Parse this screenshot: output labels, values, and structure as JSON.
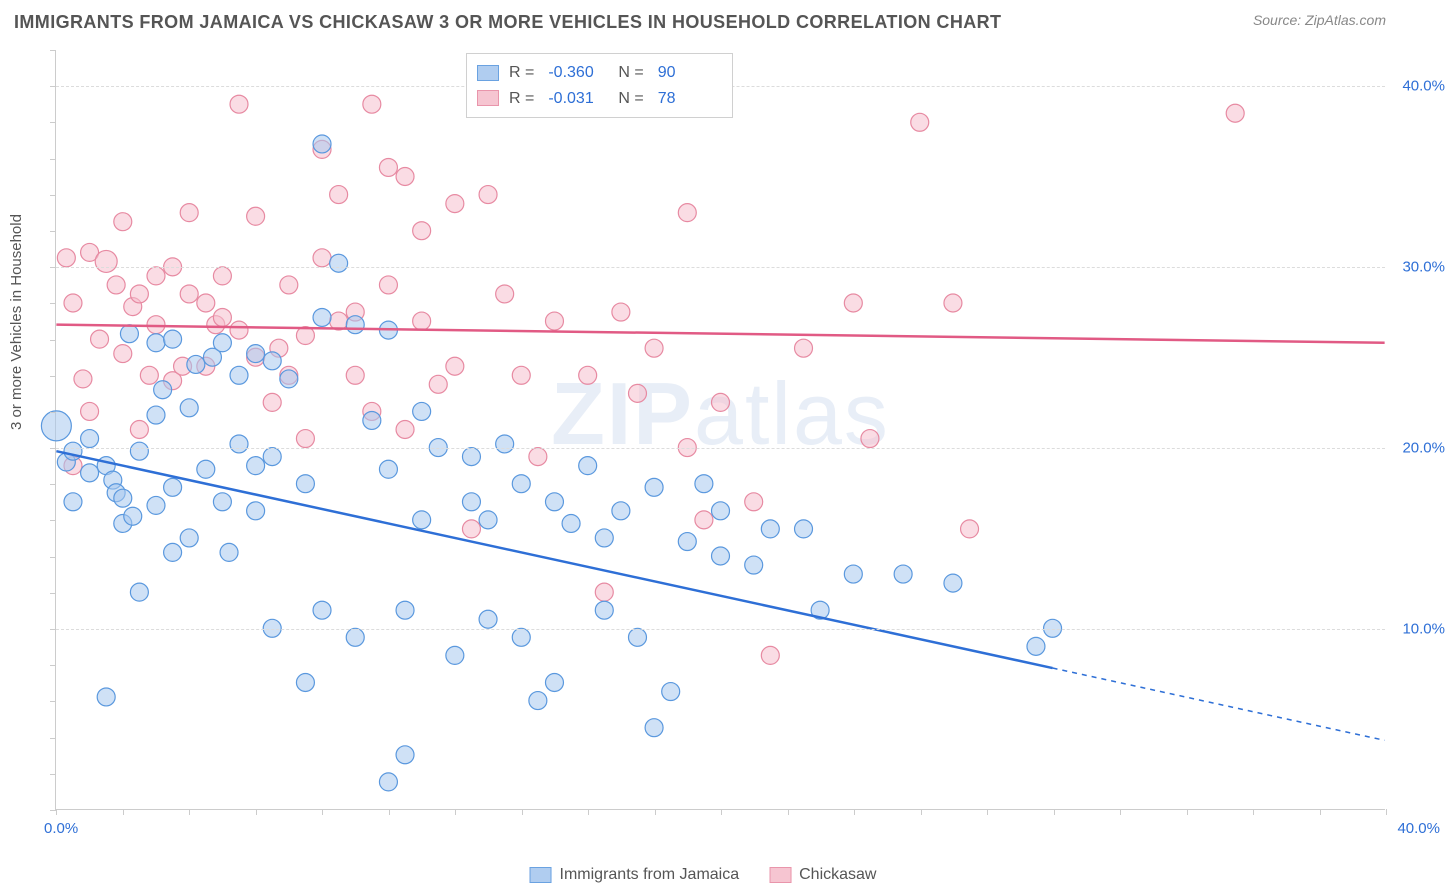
{
  "title": "IMMIGRANTS FROM JAMAICA VS CHICKASAW 3 OR MORE VEHICLES IN HOUSEHOLD CORRELATION CHART",
  "source": "Source: ZipAtlas.com",
  "ylabel": "3 or more Vehicles in Household",
  "watermark_bold": "ZIP",
  "watermark_rest": "atlas",
  "chart": {
    "type": "scatter",
    "background_color": "#ffffff",
    "grid_color": "#dcdcdc",
    "border_color": "#cccccc",
    "xlim": [
      0,
      40
    ],
    "ylim": [
      0,
      42
    ],
    "x_tick_values": [
      0,
      2,
      4,
      6,
      8,
      10,
      12,
      14,
      16,
      18,
      20,
      22,
      24,
      26,
      28,
      30,
      32,
      34,
      36,
      38,
      40
    ],
    "y_tick_values": [
      0,
      2,
      4,
      6,
      8,
      10,
      12,
      14,
      16,
      18,
      20,
      22,
      24,
      26,
      28,
      30,
      32,
      34,
      36,
      38,
      40,
      42
    ],
    "y_gridlines": [
      10,
      20,
      30,
      40
    ],
    "x_labels": {
      "min": "0.0%",
      "max": "40.0%"
    },
    "y_labels": [
      {
        "v": 10,
        "t": "10.0%"
      },
      {
        "v": 20,
        "t": "20.0%"
      },
      {
        "v": 30,
        "t": "30.0%"
      },
      {
        "v": 40,
        "t": "40.0%"
      }
    ],
    "tick_label_color": "#2e6fd6",
    "axis_label_color": "#555555",
    "axis_label_fontsize": 15
  },
  "series": {
    "jamaica": {
      "label": "Immigrants from Jamaica",
      "fill": "#a8c8ef",
      "stroke": "#5a98de",
      "fill_opacity": 0.55,
      "marker_radius": 9,
      "line_color": "#2e6fd6",
      "line_width": 2.5,
      "R_label": "R =",
      "R": "-0.360",
      "N_label": "N =",
      "N": "90",
      "regression": {
        "x1": 0,
        "y1": 19.8,
        "x2": 30,
        "y2": 7.8,
        "dash_x2": 40,
        "dash_y2": 3.8
      },
      "points": [
        [
          0,
          21.2,
          15
        ],
        [
          0.3,
          19.2,
          9
        ],
        [
          0.5,
          17.0,
          9
        ],
        [
          0.5,
          19.8,
          9
        ],
        [
          1.0,
          18.6,
          9
        ],
        [
          1.0,
          20.5,
          9
        ],
        [
          1.5,
          6.2,
          9
        ],
        [
          1.5,
          19.0,
          9
        ],
        [
          1.7,
          18.2,
          9
        ],
        [
          1.8,
          17.5,
          9
        ],
        [
          2.0,
          15.8,
          9
        ],
        [
          2.0,
          17.2,
          9
        ],
        [
          2.2,
          26.3,
          9
        ],
        [
          2.3,
          16.2,
          9
        ],
        [
          2.5,
          12.0,
          9
        ],
        [
          2.5,
          19.8,
          9
        ],
        [
          3.0,
          16.8,
          9
        ],
        [
          3.0,
          21.8,
          9
        ],
        [
          3.0,
          25.8,
          9
        ],
        [
          3.2,
          23.2,
          9
        ],
        [
          3.5,
          14.2,
          9
        ],
        [
          3.5,
          17.8,
          9
        ],
        [
          3.5,
          26.0,
          9
        ],
        [
          4.0,
          15.0,
          9
        ],
        [
          4.0,
          22.2,
          9
        ],
        [
          4.2,
          24.6,
          9
        ],
        [
          4.5,
          18.8,
          9
        ],
        [
          4.7,
          25.0,
          9
        ],
        [
          5.0,
          17.0,
          9
        ],
        [
          5.0,
          25.8,
          9
        ],
        [
          5.2,
          14.2,
          9
        ],
        [
          5.5,
          20.2,
          9
        ],
        [
          5.5,
          24.0,
          9
        ],
        [
          6.0,
          16.5,
          9
        ],
        [
          6.0,
          19.0,
          9
        ],
        [
          6.0,
          25.2,
          9
        ],
        [
          6.5,
          10.0,
          9
        ],
        [
          6.5,
          19.5,
          9
        ],
        [
          6.5,
          24.8,
          9
        ],
        [
          7.0,
          23.8,
          9
        ],
        [
          7.5,
          7.0,
          9
        ],
        [
          7.5,
          18.0,
          9
        ],
        [
          8.0,
          11.0,
          9
        ],
        [
          8.0,
          27.2,
          9
        ],
        [
          8.0,
          36.8,
          9
        ],
        [
          8.5,
          30.2,
          9
        ],
        [
          9.0,
          9.5,
          9
        ],
        [
          9.0,
          26.8,
          9
        ],
        [
          9.5,
          21.5,
          9
        ],
        [
          10.0,
          1.5,
          9
        ],
        [
          10.0,
          18.8,
          9
        ],
        [
          10.0,
          26.5,
          9
        ],
        [
          10.5,
          11.0,
          9
        ],
        [
          10.5,
          3.0,
          9
        ],
        [
          11.0,
          16.0,
          9
        ],
        [
          11.0,
          22.0,
          9
        ],
        [
          11.5,
          20.0,
          9
        ],
        [
          12.0,
          8.5,
          9
        ],
        [
          12.5,
          19.5,
          9
        ],
        [
          12.5,
          17.0,
          9
        ],
        [
          13.0,
          10.5,
          9
        ],
        [
          13.0,
          16.0,
          9
        ],
        [
          13.5,
          20.2,
          9
        ],
        [
          14.0,
          9.5,
          9
        ],
        [
          14.0,
          18.0,
          9
        ],
        [
          14.5,
          6.0,
          9
        ],
        [
          15.0,
          7.0,
          9
        ],
        [
          15.0,
          17.0,
          9
        ],
        [
          15.5,
          15.8,
          9
        ],
        [
          16.0,
          19.0,
          9
        ],
        [
          16.5,
          15.0,
          9
        ],
        [
          16.5,
          11.0,
          9
        ],
        [
          17.0,
          16.5,
          9
        ],
        [
          17.5,
          9.5,
          9
        ],
        [
          18.0,
          4.5,
          9
        ],
        [
          18.0,
          17.8,
          9
        ],
        [
          18.5,
          6.5,
          9
        ],
        [
          19.0,
          14.8,
          9
        ],
        [
          19.5,
          18.0,
          9
        ],
        [
          20.0,
          14.0,
          9
        ],
        [
          20.0,
          16.5,
          9
        ],
        [
          21.0,
          13.5,
          9
        ],
        [
          21.5,
          15.5,
          9
        ],
        [
          22.5,
          15.5,
          9
        ],
        [
          23.0,
          11.0,
          9
        ],
        [
          24.0,
          13.0,
          9
        ],
        [
          25.5,
          13.0,
          9
        ],
        [
          27.0,
          12.5,
          9
        ],
        [
          29.5,
          9.0,
          9
        ],
        [
          30.0,
          10.0,
          9
        ]
      ]
    },
    "chickasaw": {
      "label": "Chickasaw",
      "fill": "#f6bfcd",
      "stroke": "#e78aa2",
      "fill_opacity": 0.55,
      "marker_radius": 9,
      "line_color": "#e15a84",
      "line_width": 2.5,
      "R_label": "R =",
      "R": "-0.031",
      "N_label": "N =",
      "N": "78",
      "regression": {
        "x1": 0,
        "y1": 26.8,
        "x2": 40,
        "y2": 25.8
      },
      "points": [
        [
          0.3,
          30.5,
          9
        ],
        [
          0.5,
          19.0,
          9
        ],
        [
          0.5,
          28.0,
          9
        ],
        [
          0.8,
          23.8,
          9
        ],
        [
          1.0,
          30.8,
          9
        ],
        [
          1.0,
          22.0,
          9
        ],
        [
          1.3,
          26.0,
          9
        ],
        [
          1.5,
          30.3,
          11
        ],
        [
          1.8,
          29.0,
          9
        ],
        [
          2.0,
          25.2,
          9
        ],
        [
          2.0,
          32.5,
          9
        ],
        [
          2.3,
          27.8,
          9
        ],
        [
          2.5,
          21.0,
          9
        ],
        [
          2.5,
          28.5,
          9
        ],
        [
          2.8,
          24.0,
          9
        ],
        [
          3.0,
          29.5,
          9
        ],
        [
          3.0,
          26.8,
          9
        ],
        [
          3.5,
          23.7,
          9
        ],
        [
          3.5,
          30.0,
          9
        ],
        [
          3.8,
          24.5,
          9
        ],
        [
          4.0,
          33.0,
          9
        ],
        [
          4.0,
          28.5,
          9
        ],
        [
          4.5,
          28.0,
          9
        ],
        [
          4.5,
          24.5,
          9
        ],
        [
          4.8,
          26.8,
          9
        ],
        [
          5.0,
          27.2,
          9
        ],
        [
          5.0,
          29.5,
          9
        ],
        [
          5.5,
          26.5,
          9
        ],
        [
          5.5,
          39.0,
          9
        ],
        [
          6.0,
          32.8,
          9
        ],
        [
          6.0,
          25.0,
          9
        ],
        [
          6.5,
          22.5,
          9
        ],
        [
          6.7,
          25.5,
          9
        ],
        [
          7.0,
          29.0,
          9
        ],
        [
          7.0,
          24.0,
          9
        ],
        [
          7.5,
          26.2,
          9
        ],
        [
          7.5,
          20.5,
          9
        ],
        [
          8.0,
          36.5,
          9
        ],
        [
          8.0,
          30.5,
          9
        ],
        [
          8.5,
          27.0,
          9
        ],
        [
          8.5,
          34.0,
          9
        ],
        [
          9.0,
          27.5,
          9
        ],
        [
          9.0,
          24.0,
          9
        ],
        [
          9.5,
          39.0,
          9
        ],
        [
          9.5,
          22.0,
          9
        ],
        [
          10.0,
          35.5,
          9
        ],
        [
          10.0,
          29.0,
          9
        ],
        [
          10.5,
          35.0,
          9
        ],
        [
          10.5,
          21.0,
          9
        ],
        [
          11.0,
          27.0,
          9
        ],
        [
          11.0,
          32.0,
          9
        ],
        [
          11.5,
          23.5,
          9
        ],
        [
          12.0,
          33.5,
          9
        ],
        [
          12.0,
          24.5,
          9
        ],
        [
          12.5,
          15.5,
          9
        ],
        [
          13.0,
          34.0,
          9
        ],
        [
          13.5,
          28.5,
          9
        ],
        [
          14.0,
          24.0,
          9
        ],
        [
          14.5,
          19.5,
          9
        ],
        [
          15.0,
          27.0,
          9
        ],
        [
          16.0,
          24.0,
          9
        ],
        [
          16.5,
          12.0,
          9
        ],
        [
          17.0,
          27.5,
          9
        ],
        [
          17.5,
          23.0,
          9
        ],
        [
          18.0,
          25.5,
          9
        ],
        [
          19.0,
          20.0,
          9
        ],
        [
          19.0,
          33.0,
          9
        ],
        [
          20.0,
          22.5,
          9
        ],
        [
          21.0,
          17.0,
          9
        ],
        [
          21.5,
          8.5,
          9
        ],
        [
          22.5,
          25.5,
          9
        ],
        [
          24.0,
          28.0,
          9
        ],
        [
          24.5,
          20.5,
          9
        ],
        [
          26.0,
          38.0,
          9
        ],
        [
          27.0,
          28.0,
          9
        ],
        [
          27.5,
          15.5,
          9
        ],
        [
          35.5,
          38.5,
          9
        ],
        [
          19.5,
          16.0,
          9
        ]
      ]
    }
  },
  "legend_bottom": {
    "item1_label": "Immigrants from Jamaica",
    "item2_label": "Chickasaw"
  }
}
